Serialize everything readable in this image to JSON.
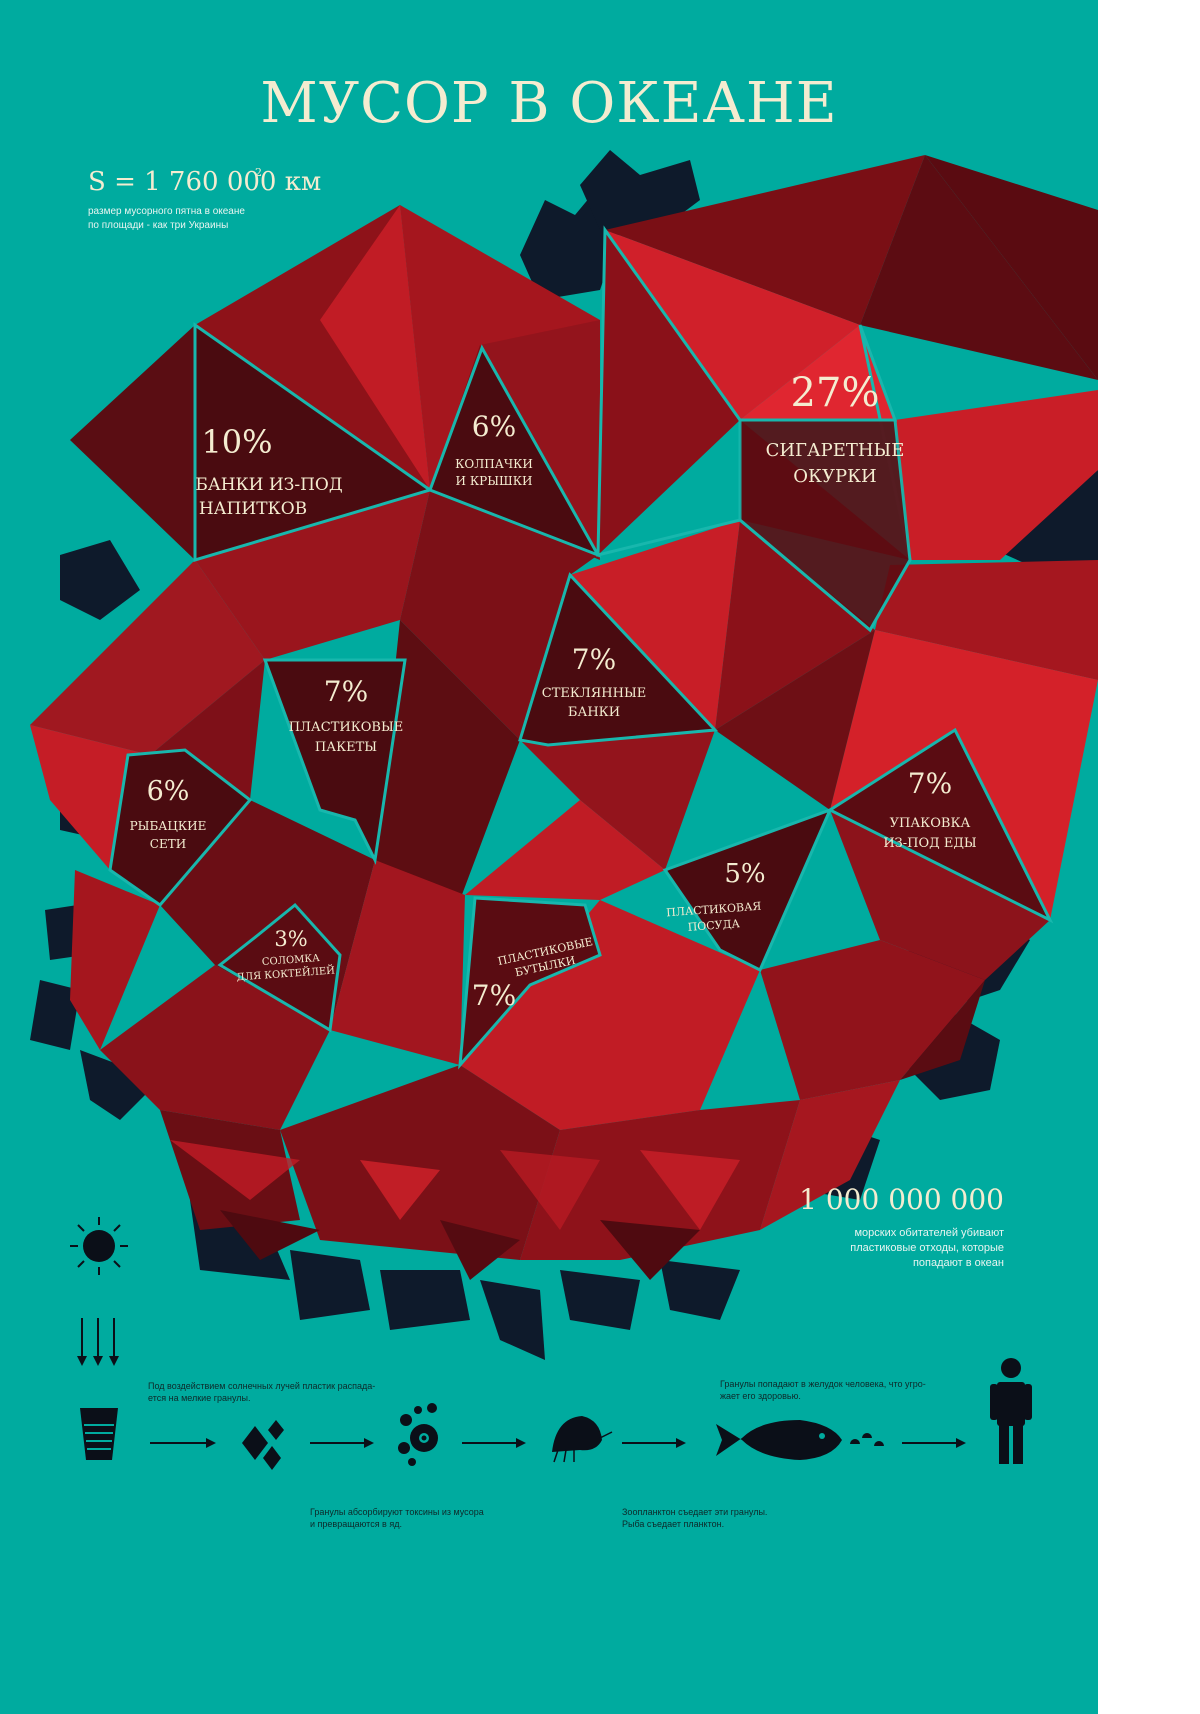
{
  "poster": {
    "title": "МУСОР В ОКЕАНЕ",
    "area_stat": "S = 1 760 000 км",
    "area_sup": "2",
    "area_note_1": "размер мусорного пятна в океане",
    "area_note_2": "по площади - как три Украины",
    "deaths_stat": "1 000 000 000",
    "deaths_note_1": "морских обитателей убивают",
    "deaths_note_2": "пластиковые отходы, которые",
    "deaths_note_3": "попадают в океан"
  },
  "colors": {
    "background": "#00ab9f",
    "accent_text": "#f4ecd0",
    "red_bright": "#d0202a",
    "red_dark": "#4d0b10",
    "silhouette": "#0e1a2b",
    "outline": "#18b7ad"
  },
  "categories": [
    {
      "value": "27%",
      "label_1": "СИГАРЕТНЫЕ",
      "label_2": "ОКУРКИ"
    },
    {
      "value": "10%",
      "label_1": "БАНКИ ИЗ-ПОД",
      "label_2": "НАПИТКОВ"
    },
    {
      "value": "6%",
      "label_1": "КОЛПАЧКИ",
      "label_2": "И КРЫШКИ"
    },
    {
      "value": "7%",
      "label_1": "СТЕКЛЯННЫЕ",
      "label_2": "БАНКИ"
    },
    {
      "value": "7%",
      "label_1": "ПЛАСТИКОВЫЕ",
      "label_2": "ПАКЕТЫ"
    },
    {
      "value": "6%",
      "label_1": "РЫБАЦКИЕ",
      "label_2": "СЕТИ"
    },
    {
      "value": "7%",
      "label_1": "УПАКОВКА",
      "label_2": "ИЗ-ПОД ЕДЫ"
    },
    {
      "value": "5%",
      "label_1": "ПЛАСТИКОВАЯ",
      "label_2": "ПОСУДА"
    },
    {
      "value": "3%",
      "label_1": "СОЛОМКА",
      "label_2": "ДЛЯ КОКТЕЙЛЕЙ"
    },
    {
      "value": "7%",
      "label_1": "ПЛАСТИКОВЫЕ",
      "label_2": "БУТЫЛКИ"
    }
  ],
  "process": {
    "step1_1": "Под воздействием солнечных лучей пластик распада-",
    "step1_2": "ется на мелкие гранулы.",
    "step2_1": "Гранулы абсорбируют токсины из мусора",
    "step2_2": "и превращаются в яд.",
    "step3_1": "Зоопланктон съедает эти гранулы.",
    "step3_2": "Рыба съедает планктон.",
    "step4_1": "Гранулы попадают в желудок человека, что угро-",
    "step4_2": "жает его здоровью.",
    "icons": [
      "sun-icon",
      "sun-rays-arrows-icon",
      "plastic-cup-icon",
      "arrow-icon",
      "granules-icon",
      "toxic-bubbles-icon",
      "zooplankton-icon",
      "fish-icon",
      "human-icon"
    ]
  }
}
